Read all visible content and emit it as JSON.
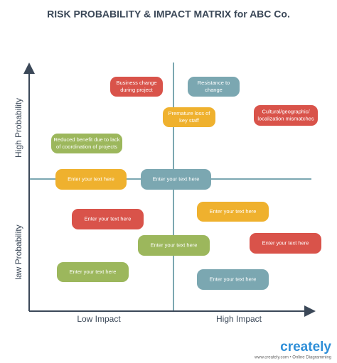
{
  "title": "RISK PROBABILITY & IMPACT MATRIX for ABC Co.",
  "axes": {
    "y_high": "High Probability",
    "y_low": "law Probability",
    "x_low": "Low Impact",
    "x_high": "High Impact"
  },
  "nodes": [
    {
      "lines": [
        "Business change",
        "during project"
      ],
      "color": "#d9534a"
    },
    {
      "lines": [
        "Resistance to",
        "change"
      ],
      "color": "#7ba7b1"
    },
    {
      "lines": [
        "Premature loss of",
        "key staff"
      ],
      "color": "#efb12e"
    },
    {
      "lines": [
        "Cultural/geographic/",
        "localization mismatches"
      ],
      "color": "#d9534a"
    },
    {
      "lines": [
        "Reduced benefit due to lack",
        "of coordination of projects"
      ],
      "color": "#9cb75c"
    },
    {
      "lines": [
        "Enter your text here"
      ],
      "color": "#efb12e"
    },
    {
      "lines": [
        "Enter your text here"
      ],
      "color": "#7ba7b1"
    },
    {
      "lines": [
        "Enter your text here"
      ],
      "color": "#d9534a"
    },
    {
      "lines": [
        "Enter your text here"
      ],
      "color": "#efb12e"
    },
    {
      "lines": [
        "Enter your text here"
      ],
      "color": "#9cb75c"
    },
    {
      "lines": [
        "Enter your text here"
      ],
      "color": "#d9534a"
    },
    {
      "lines": [
        "Enter your text here"
      ],
      "color": "#9cb75c"
    },
    {
      "lines": [
        "Enter your text here"
      ],
      "color": "#7ba7b1"
    }
  ],
  "footer": {
    "logo": "creately",
    "tagline": "www.creately.com • Online Diagramming"
  }
}
